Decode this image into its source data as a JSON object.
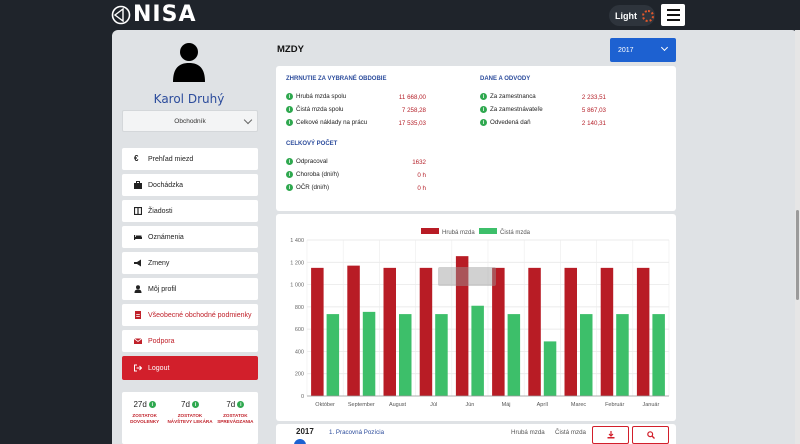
{
  "app": {
    "logo_text": "NISA"
  },
  "header": {
    "theme_label": "Light"
  },
  "user": {
    "name": "Karol Druhý",
    "role": "Obchodník"
  },
  "sidebar": {
    "items": [
      {
        "label": "Prehľad miezd",
        "icon": "euro-icon"
      },
      {
        "label": "Dochádzka",
        "icon": "briefcase-icon"
      },
      {
        "label": "Žiadosti",
        "icon": "columns-icon"
      },
      {
        "label": "Oznámenia",
        "icon": "bed-icon"
      },
      {
        "label": "Zmeny",
        "icon": "megaphone-icon"
      },
      {
        "label": "Môj profil",
        "icon": "user-icon"
      },
      {
        "label": "Všeobecné obchodné podmienky",
        "icon": "document-icon"
      },
      {
        "label": "Podpora",
        "icon": "envelope-icon"
      },
      {
        "label": "Logout",
        "icon": "sign-out-icon"
      }
    ],
    "stats": [
      {
        "value": "27d",
        "label": "ZOSTATOK DOVOLENKY"
      },
      {
        "value": "7d",
        "label": "ZOSTATOK NÁVŠTEVY LEKÁRA"
      },
      {
        "value": "7d",
        "label": "ZOSTATOK SPREVÁDZANIA"
      }
    ]
  },
  "main": {
    "title": "MZDY",
    "year": "2017",
    "summary": {
      "title": "ZHRNUTIE ZA VYBRANÉ OBDOBIE",
      "rows": [
        {
          "label": "Hrubá mzda spolu",
          "value": "11 668,00"
        },
        {
          "label": "Čistá mzda spolu",
          "value": "7 258,28"
        },
        {
          "label": "Celkové náklady na prácu",
          "value": "17 535,03"
        }
      ]
    },
    "taxes": {
      "title": "DANE A ODVODY",
      "rows": [
        {
          "label": "Za zamestnanca",
          "value": "2 233,51"
        },
        {
          "label": "Za zamestnávateľe",
          "value": "5 867,03"
        },
        {
          "label": "Odvedená daň",
          "value": "2 140,31"
        }
      ]
    },
    "count": {
      "title": "CELKOVÝ POČET",
      "rows": [
        {
          "label": "Odpracoval",
          "value": "1632"
        },
        {
          "label": "Choroba (dni/h)",
          "value": "0 h"
        },
        {
          "label": "OČR (dni/h)",
          "value": "0 h"
        }
      ]
    },
    "bottom": {
      "year": "2017",
      "position": "1. Pracovná Pozícia",
      "col1": "Hrubá mzda",
      "col2": "Čistá mzda"
    }
  },
  "colors": {
    "gross": "#b81c25",
    "net": "#3dbf6a",
    "primary": "#1d61d1",
    "danger": "#d21f2b"
  },
  "chart_data": {
    "type": "bar",
    "categories": [
      "Október",
      "September",
      "August",
      "Júl",
      "Jún",
      "Máj",
      "Apríl",
      "Marec",
      "Február",
      "Január"
    ],
    "series": [
      {
        "name": "Hrubá mzda",
        "values": [
          1150,
          1170,
          1150,
          1150,
          1255,
          1150,
          1150,
          1150,
          1150,
          1150
        ]
      },
      {
        "name": "Čistá mzda",
        "values": [
          735,
          755,
          735,
          735,
          810,
          735,
          490,
          735,
          735,
          735
        ]
      }
    ],
    "ylim": [
      0,
      1400
    ],
    "yticks": [
      "0",
      "200",
      "400",
      "600",
      "800",
      "1 000",
      "1 200",
      "1 400"
    ],
    "grid": true,
    "legend": "top"
  }
}
